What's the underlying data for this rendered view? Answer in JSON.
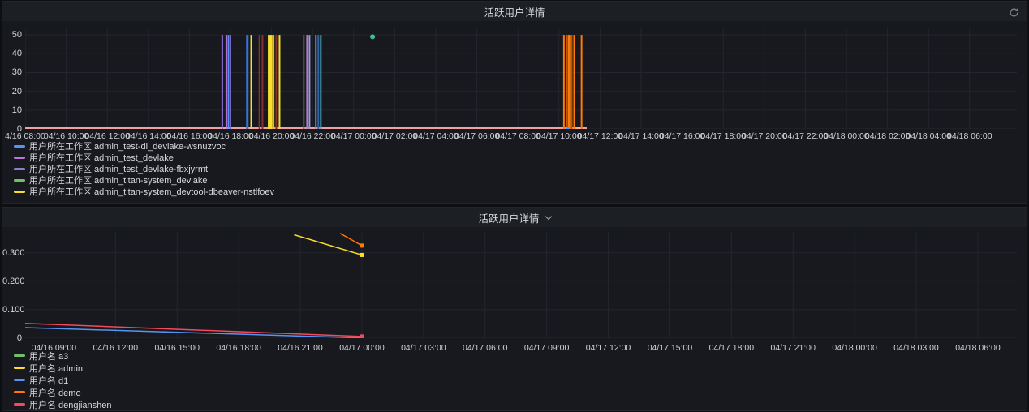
{
  "page": {
    "background": "#0e0f13",
    "panel_background": "#17191e",
    "grid_color": "#23262c",
    "text_color": "#d8d9da"
  },
  "panels": [
    {
      "title": "活跃用户详情",
      "has_refresh_icon": true,
      "legend": [
        {
          "color": "#5794f2",
          "label": "用户所在工作区 admin_test-dl_devlake-wsnuzvoc"
        },
        {
          "color": "#b877d9",
          "label": "用户所在工作区 admin_test_devlake"
        },
        {
          "color": "#8a7fc9",
          "label": "用户所在工作区 admin_test_devlake-fbxjyrmt"
        },
        {
          "color": "#73bf69",
          "label": "用户所在工作区 admin_titan-system_devlake"
        },
        {
          "color": "#fade2a",
          "label": "用户所在工作区 admin_titan-system_devtool-dbeaver-nstlfoev"
        }
      ]
    },
    {
      "title": "活跃用户详情",
      "has_chevron": true,
      "legend": [
        {
          "color": "#73bf69",
          "label": "用户名 a3"
        },
        {
          "color": "#fade2a",
          "label": "用户名 admin"
        },
        {
          "color": "#5794f2",
          "label": "用户名 d1"
        },
        {
          "color": "#ff780a",
          "label": "用户名 demo"
        },
        {
          "color": "#f2495c",
          "label": "用户名 dengjianshen"
        }
      ]
    }
  ],
  "chart_data": [
    {
      "type": "bar",
      "title": "活跃用户详情",
      "time_unit": "hours since 04/16 00:00",
      "xlim": [
        8,
        56.3
      ],
      "ylim": [
        0,
        53.5
      ],
      "grid": true,
      "legend_position": "bottom-left",
      "yticks": [
        {
          "v": 0,
          "label": "0"
        },
        {
          "v": 10,
          "label": "10"
        },
        {
          "v": 20,
          "label": "20"
        },
        {
          "v": 30,
          "label": "30"
        },
        {
          "v": 40,
          "label": "40"
        },
        {
          "v": 50,
          "label": "50"
        }
      ],
      "xticks": [
        {
          "t": 8,
          "label": "4/16 08:00"
        },
        {
          "t": 10,
          "label": "04/16 10:00"
        },
        {
          "t": 12,
          "label": "04/16 12:00"
        },
        {
          "t": 14,
          "label": "04/16 14:00"
        },
        {
          "t": 16,
          "label": "04/16 16:00"
        },
        {
          "t": 18,
          "label": "04/16 18:00"
        },
        {
          "t": 20,
          "label": "04/16 20:00"
        },
        {
          "t": 22,
          "label": "04/16 22:00"
        },
        {
          "t": 24,
          "label": "04/17 00:00"
        },
        {
          "t": 26,
          "label": "04/17 02:00"
        },
        {
          "t": 28,
          "label": "04/17 04:00"
        },
        {
          "t": 30,
          "label": "04/17 06:00"
        },
        {
          "t": 32,
          "label": "04/17 08:00"
        },
        {
          "t": 34,
          "label": "04/17 10:00"
        },
        {
          "t": 36,
          "label": "04/17 12:00"
        },
        {
          "t": 38,
          "label": "04/17 14:00"
        },
        {
          "t": 40,
          "label": "04/17 16:00"
        },
        {
          "t": 42,
          "label": "04/17 18:00"
        },
        {
          "t": 44,
          "label": "04/17 20:00"
        },
        {
          "t": 46,
          "label": "04/17 22:00"
        },
        {
          "t": 48,
          "label": "04/18 00:00"
        },
        {
          "t": 50,
          "label": "04/18 02:00"
        },
        {
          "t": 52,
          "label": "04/18 04:00"
        },
        {
          "t": 54,
          "label": "04/18 06:00"
        }
      ],
      "spikes": [
        {
          "t": 17.6,
          "v": 50,
          "c": "#8f6fd9",
          "w": 2
        },
        {
          "t": 17.8,
          "v": 50,
          "c": "#b877d9",
          "w": 2
        },
        {
          "t": 17.9,
          "v": 50,
          "c": "#5794f2",
          "w": 2
        },
        {
          "t": 18.0,
          "v": 50,
          "c": "#7b68c9",
          "w": 2
        },
        {
          "t": 18.82,
          "v": 50,
          "c": "#3274d9",
          "w": 3
        },
        {
          "t": 19.01,
          "v": 50,
          "c": "#fade2a",
          "w": 2
        },
        {
          "t": 19.41,
          "v": 50,
          "c": "#8b2e2e",
          "w": 2
        },
        {
          "t": 19.56,
          "v": 50,
          "c": "#8b2e2e",
          "w": 2
        },
        {
          "t": 19.92,
          "v": 50,
          "c": "#fade2a",
          "w": 5
        },
        {
          "t": 20.08,
          "v": 50,
          "c": "#e2bf1b",
          "w": 3
        },
        {
          "t": 20.23,
          "v": 50,
          "c": "#8b2e2e",
          "w": 2
        },
        {
          "t": 20.39,
          "v": 50,
          "c": "#fade2a",
          "w": 2
        },
        {
          "t": 21.57,
          "v": 50,
          "c": "#44703f",
          "w": 2
        },
        {
          "t": 21.73,
          "v": 50,
          "c": "#b877d9",
          "w": 2
        },
        {
          "t": 21.85,
          "v": 50,
          "c": "#a095d9",
          "w": 2
        },
        {
          "t": 22.16,
          "v": 50,
          "c": "#5794f2",
          "w": 2
        },
        {
          "t": 22.28,
          "v": 50,
          "c": "#35619e",
          "w": 2
        },
        {
          "t": 22.4,
          "v": 50,
          "c": "#41a6b5",
          "w": 2
        },
        {
          "t": 34.24,
          "v": 50,
          "c": "#ff780a",
          "w": 2
        },
        {
          "t": 34.36,
          "v": 50,
          "c": "#cf6508",
          "w": 2
        },
        {
          "t": 34.5,
          "v": 50,
          "c": "#ff780a",
          "w": 4
        },
        {
          "t": 34.62,
          "v": 50,
          "c": "#b35a07",
          "w": 2
        },
        {
          "t": 34.74,
          "v": 50,
          "c": "#ff780a",
          "w": 2
        },
        {
          "t": 35.1,
          "v": 50,
          "c": "#ff780a",
          "w": 2
        }
      ],
      "baseline": {
        "v": 0,
        "from": 8,
        "to": 35.35,
        "color": "#f2a0a0"
      },
      "points": [
        {
          "t": 24.92,
          "v": 49,
          "c": "#3dc28f",
          "r": 3
        },
        {
          "t": 34.4,
          "v": 0,
          "c": "#5794f2",
          "r": 2.5
        },
        {
          "t": 34.95,
          "v": 0,
          "c": "#ffa98f",
          "r": 3
        }
      ]
    },
    {
      "type": "line",
      "title": "活跃用户详情",
      "time_unit": "hours since 04/16 00:00",
      "xlim": [
        7.6,
        55.9
      ],
      "ylim": [
        0,
        0.373
      ],
      "grid": true,
      "legend_position": "bottom-left",
      "yticks": [
        {
          "v": 0,
          "label": "0"
        },
        {
          "v": 0.1,
          "label": "0.100"
        },
        {
          "v": 0.2,
          "label": "0.200"
        },
        {
          "v": 0.3,
          "label": "0.300"
        }
      ],
      "xticks": [
        {
          "t": 9,
          "label": "04/16 09:00"
        },
        {
          "t": 12,
          "label": "04/16 12:00"
        },
        {
          "t": 15,
          "label": "04/16 15:00"
        },
        {
          "t": 18,
          "label": "04/16 18:00"
        },
        {
          "t": 21,
          "label": "04/16 21:00"
        },
        {
          "t": 24,
          "label": "04/17 00:00"
        },
        {
          "t": 27,
          "label": "04/17 03:00"
        },
        {
          "t": 30,
          "label": "04/17 06:00"
        },
        {
          "t": 33,
          "label": "04/17 09:00"
        },
        {
          "t": 36,
          "label": "04/17 12:00"
        },
        {
          "t": 39,
          "label": "04/17 15:00"
        },
        {
          "t": 42,
          "label": "04/17 18:00"
        },
        {
          "t": 45,
          "label": "04/17 21:00"
        },
        {
          "t": 48,
          "label": "04/18 00:00"
        },
        {
          "t": 51,
          "label": "04/18 03:00"
        },
        {
          "t": 54,
          "label": "04/18 06:00"
        }
      ],
      "series": [
        {
          "name": "用户名 a3",
          "color": "#73bf69",
          "points": []
        },
        {
          "name": "用户名 admin",
          "color": "#fade2a",
          "points": [
            [
              20.7,
              0.363
            ],
            [
              24,
              0.292
            ]
          ],
          "end_marker": true
        },
        {
          "name": "用户名 d1",
          "color": "#5794f2",
          "points": [
            [
              7.6,
              0.037
            ],
            [
              24,
              0.001
            ]
          ],
          "end_marker": true
        },
        {
          "name": "用户名 demo",
          "color": "#ff780a",
          "points": [
            [
              22.94,
              0.368
            ],
            [
              24,
              0.325
            ]
          ],
          "end_marker": true
        },
        {
          "name": "用户名 dengjianshen",
          "color": "#f2495c",
          "points": [
            [
              7.6,
              0.052
            ],
            [
              24,
              0.006
            ]
          ],
          "end_marker": true
        }
      ]
    }
  ]
}
